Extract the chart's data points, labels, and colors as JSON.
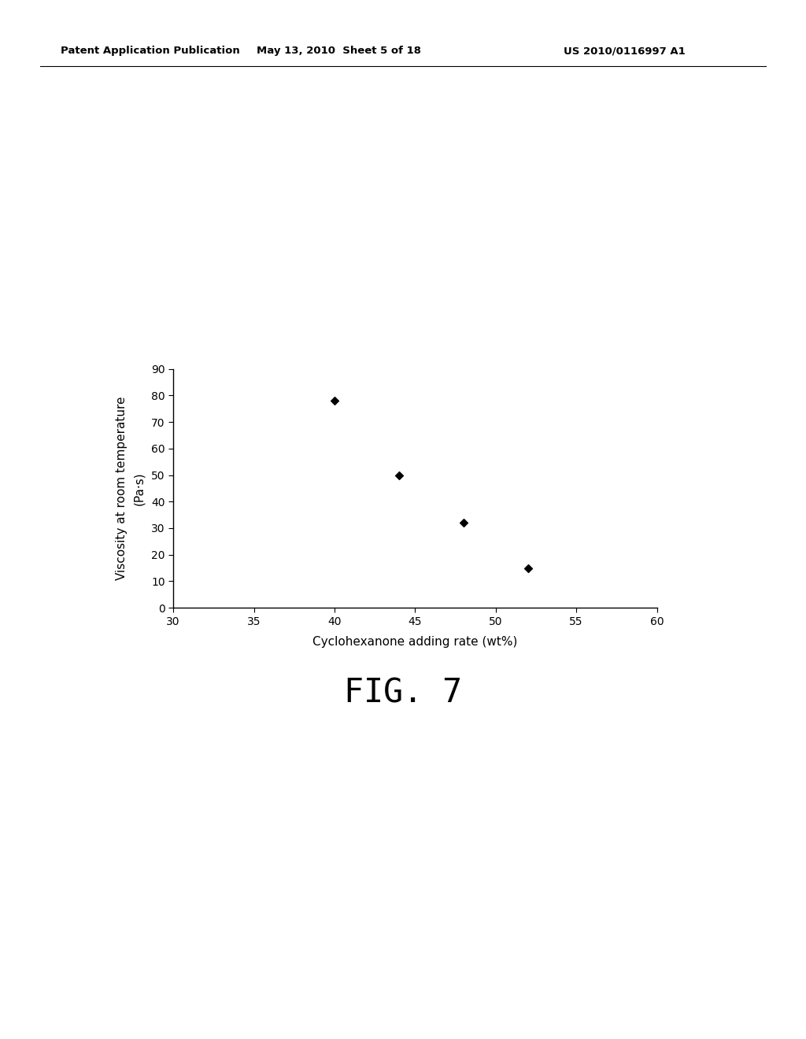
{
  "x_data": [
    40,
    44,
    48,
    52
  ],
  "y_data": [
    78,
    50,
    32,
    15
  ],
  "xlim": [
    30,
    60
  ],
  "ylim": [
    0,
    90
  ],
  "xticks": [
    30,
    35,
    40,
    45,
    50,
    55,
    60
  ],
  "yticks": [
    0,
    10,
    20,
    30,
    40,
    50,
    60,
    70,
    80,
    90
  ],
  "xlabel": "Cyclohexanone adding rate (wt%)",
  "ylabel_line1": "Viscosity at room temperature",
  "ylabel_line2": "(Pa·s)",
  "figure_caption": "FIG. 7",
  "header_left": "Patent Application Publication",
  "header_center": "May 13, 2010  Sheet 5 of 18",
  "header_right": "US 2010/0116997 A1",
  "bg_color": "#ffffff",
  "marker_color": "#000000",
  "marker_style": "D",
  "marker_size": 5,
  "axis_linewidth": 1.0,
  "tick_fontsize": 10,
  "label_fontsize": 11,
  "caption_fontsize": 30,
  "header_fontsize": 9.5
}
